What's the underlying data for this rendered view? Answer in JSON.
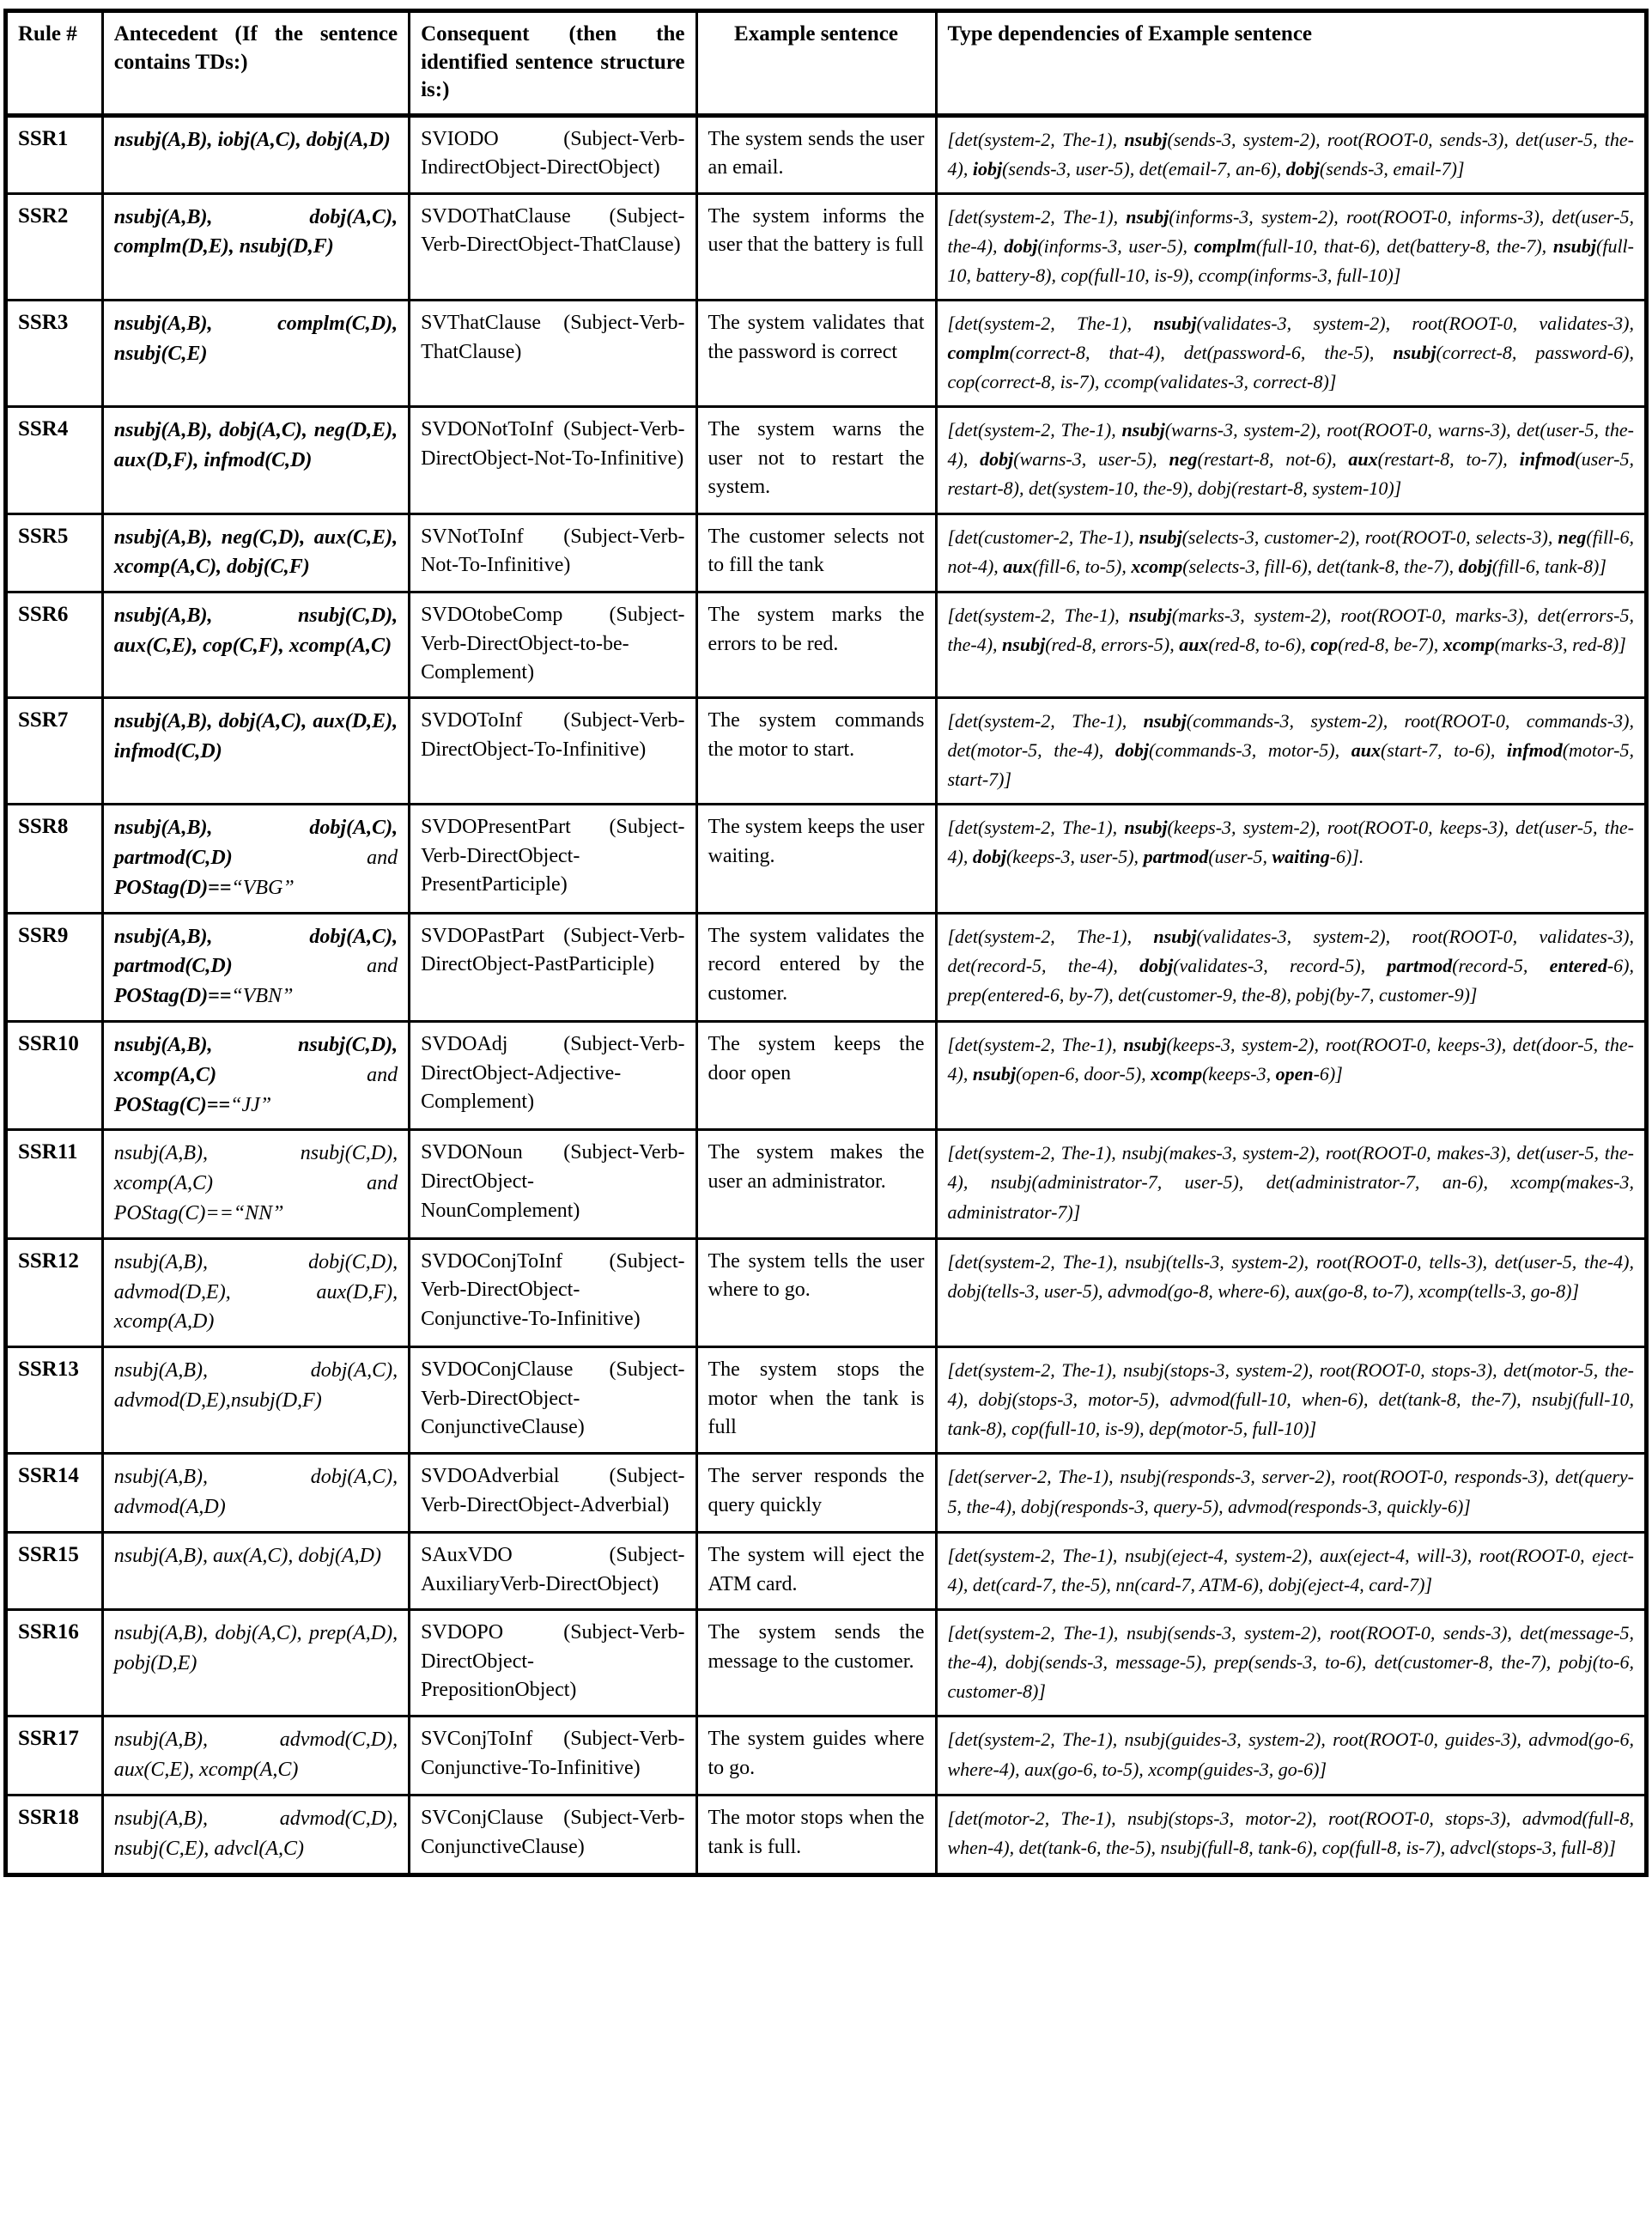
{
  "colors": {
    "text": "#000000",
    "background": "#ffffff",
    "border": "#000000"
  },
  "table": {
    "headers": [
      "Rule #",
      "Antecedent (If the sentence contains TDs:)",
      "Consequent (then the identified sentence structure is:)",
      "Example sentence",
      "Type dependencies of Example sentence"
    ],
    "rows": [
      {
        "rule": "SSR1",
        "antecedent": "**nsubj(A,B), iobj(A,C), dobj(A,D)**",
        "consequent": "SVIODO (Subject-Verb-IndirectObject-DirectObject)",
        "example": "The system sends the user an email.",
        "tds": "[det(system-2, The-1), **nsubj**(sends-3, system-2), root(ROOT-0, sends-3), det(user-5, the-4), **iobj**(sends-3, user-5), det(email-7, an-6), **dobj**(sends-3, email-7)]"
      },
      {
        "rule": "SSR2",
        "antecedent": "**nsubj(A,B), dobj(A,C), complm(D,E), nsubj(D,F)**",
        "consequent": "SVDOThatClause (Subject-Verb-DirectObject-ThatClause)",
        "example": "The system informs the user that the battery is full",
        "tds": "[det(system-2, The-1), **nsubj**(informs-3, system-2), root(ROOT-0, informs-3), det(user-5, the-4), **dobj**(informs-3, user-5), **complm**(full-10, that-6), det(battery-8, the-7), **nsubj**(full-10, battery-8), cop(full-10, is-9), ccomp(informs-3, full-10)]"
      },
      {
        "rule": "SSR3",
        "antecedent": "**nsubj(A,B), complm(C,D), nsubj(C,E)**",
        "consequent": "SVThatClause (Subject-Verb-ThatClause)",
        "example": "The system validates that the password is correct",
        "tds": "[det(system-2, The-1), **nsubj**(validates-3, system-2), root(ROOT-0, validates-3), **complm**(correct-8, that-4), det(password-6, the-5), **nsubj**(correct-8, password-6), cop(correct-8, is-7), ccomp(validates-3, correct-8)]"
      },
      {
        "rule": "SSR4",
        "antecedent": "**nsubj(A,B), dobj(A,C), neg(D,E), aux(D,F), infmod(C,D)**",
        "consequent": "SVDONotToInf (Subject-Verb-DirectObject-Not-To-Infinitive)",
        "example": "The system warns the user not to restart the system.",
        "tds": "[det(system-2, The-1), **nsubj**(warns-3, system-2), root(ROOT-0, warns-3), det(user-5, the-4), **dobj**(warns-3, user-5), **neg**(restart-8, not-6), **aux**(restart-8, to-7), **infmod**(user-5, restart-8), det(system-10, the-9), dobj(restart-8, system-10)]"
      },
      {
        "rule": "SSR5",
        "antecedent": "**nsubj(A,B), neg(C,D), aux(C,E), xcomp(A,C), dobj(C,F)**",
        "consequent": "SVNotToInf (Subject-Verb-Not-To-Infinitive)",
        "example": "The customer selects not to fill the tank",
        "tds": "[det(customer-2, The-1), **nsubj**(selects-3, customer-2), root(ROOT-0, selects-3), **neg**(fill-6, not-4), **aux**(fill-6, to-5), **xcomp**(selects-3, fill-6), det(tank-8, the-7), **dobj**(fill-6, tank-8)]"
      },
      {
        "rule": "SSR6",
        "antecedent": "**nsubj(A,B), nsubj(C,D), aux(C,E), cop(C,F), xcomp(A,C)**",
        "consequent": "SVDOtobeComp (Subject-Verb-DirectObject-to-be-Complement)",
        "example": "The system marks the errors to be red.",
        "tds": "[det(system-2, The-1), **nsubj**(marks-3, system-2), root(ROOT-0, marks-3), det(errors-5, the-4), **nsubj**(red-8, errors-5), **aux**(red-8, to-6), **cop**(red-8, be-7), **xcomp**(marks-3, red-8)]"
      },
      {
        "rule": "SSR7",
        "antecedent": "**nsubj(A,B), dobj(A,C), aux(D,E), infmod(C,D)**",
        "consequent": "SVDOToInf (Subject-Verb-DirectObject-To-Infinitive)",
        "example": "The system commands the motor to start.",
        "tds": "[det(system-2, The-1), **nsubj**(commands-3, system-2), root(ROOT-0, commands-3), det(motor-5, the-4), **dobj**(commands-3, motor-5), **aux**(start-7, to-6), **infmod**(motor-5, start-7)]"
      },
      {
        "rule": "SSR8",
        "antecedent": "**nsubj(A,B), dobj(A,C), partmod(C,D)** and **POStag(D)==**“VBG”",
        "consequent": "SVDOPresentPart (Subject-Verb-DirectObject-PresentParticiple)",
        "example": "The system keeps the user waiting.",
        "tds": "[det(system-2, The-1), **nsubj**(keeps-3, system-2), root(ROOT-0, keeps-3), det(user-5, the-4), **dobj**(keeps-3, user-5), **partmod**(user-5, **waiting**-6)]."
      },
      {
        "rule": "SSR9",
        "antecedent": "**nsubj(A,B), dobj(A,C), partmod(C,D)** and **POStag(D)==**“VBN”",
        "consequent": "SVDOPastPart (Subject-Verb-DirectObject-PastParticiple)",
        "example": "The system validates the record entered by the customer.",
        "tds": "[det(system-2, The-1), **nsubj**(validates-3, system-2), root(ROOT-0, validates-3), det(record-5, the-4), **dobj**(validates-3, record-5), **partmod**(record-5, **entered**-6), prep(entered-6, by-7), det(customer-9, the-8), pobj(by-7, customer-9)]"
      },
      {
        "rule": "SSR10",
        "antecedent": "**nsubj(A,B), nsubj(C,D), xcomp(A,C)** and **POStag(C)==**“JJ”",
        "consequent": "SVDOAdj (Subject-Verb-DirectObject-Adjective-Complement)",
        "example": "The system keeps the door open",
        "tds": "[det(system-2, The-1), **nsubj**(keeps-3, system-2), root(ROOT-0, keeps-3), det(door-5, the-4), **nsubj**(open-6, door-5), **xcomp**(keeps-3, **open**-6)]"
      },
      {
        "rule": "SSR11",
        "antecedent": "nsubj(A,B), nsubj(C,D), xcomp(A,C) and POStag(C)==“NN”",
        "consequent": "SVDONoun (Subject-Verb-DirectObject-NounComplement)",
        "example": "The system makes the user an administrator.",
        "tds": "[det(system-2, The-1), nsubj(makes-3, system-2), root(ROOT-0, makes-3), det(user-5, the-4), nsubj(administrator-7, user-5), det(administrator-7, an-6), xcomp(makes-3, administrator-7)]"
      },
      {
        "rule": "SSR12",
        "antecedent": "nsubj(A,B), dobj(C,D), advmod(D,E), aux(D,F), xcomp(A,D)",
        "consequent": "SVDOConjToInf (Subject-Verb-DirectObject-Conjunctive-To-Infinitive)",
        "example": "The system tells the user where to go.",
        "tds": "[det(system-2, The-1), nsubj(tells-3, system-2), root(ROOT-0, tells-3), det(user-5, the-4), dobj(tells-3, user-5), advmod(go-8, where-6), aux(go-8, to-7), xcomp(tells-3, go-8)]"
      },
      {
        "rule": "SSR13",
        "antecedent": "nsubj(A,B), dobj(A,C), advmod(D,E),nsubj(D,F)",
        "consequent": "SVDOConjClause (Subject-Verb-DirectObject-ConjunctiveClause)",
        "example": "The system stops the motor when the tank is full",
        "tds": "[det(system-2, The-1), nsubj(stops-3, system-2), root(ROOT-0, stops-3), det(motor-5, the-4), dobj(stops-3, motor-5), advmod(full-10, when-6), det(tank-8, the-7), nsubj(full-10, tank-8), cop(full-10, is-9), dep(motor-5, full-10)]"
      },
      {
        "rule": "SSR14",
        "antecedent": "nsubj(A,B), dobj(A,C), advmod(A,D)",
        "consequent": "SVDOAdverbial (Subject-Verb-DirectObject-Adverbial)",
        "example": "The server responds the query quickly",
        "tds": "[det(server-2, The-1), nsubj(responds-3, server-2), root(ROOT-0, responds-3), det(query-5, the-4), dobj(responds-3, query-5), advmod(responds-3, quickly-6)]"
      },
      {
        "rule": "SSR15",
        "antecedent": "nsubj(A,B), aux(A,C), dobj(A,D)",
        "consequent": "SAuxVDO (Subject-AuxiliaryVerb-DirectObject)",
        "example": "The system will eject the ATM card.",
        "tds": "[det(system-2, The-1), nsubj(eject-4, system-2), aux(eject-4, will-3), root(ROOT-0, eject-4), det(card-7, the-5), nn(card-7, ATM-6), dobj(eject-4, card-7)]"
      },
      {
        "rule": "SSR16",
        "antecedent": "nsubj(A,B), dobj(A,C), prep(A,D), pobj(D,E)",
        "consequent": "SVDOPO (Subject-Verb-DirectObject-PrepositionObject)",
        "example": "The system sends the message to the customer.",
        "tds": "[det(system-2, The-1), nsubj(sends-3, system-2), root(ROOT-0, sends-3), det(message-5, the-4), dobj(sends-3, message-5), prep(sends-3, to-6), det(customer-8, the-7), pobj(to-6, customer-8)]"
      },
      {
        "rule": "SSR17",
        "antecedent": "nsubj(A,B), advmod(C,D), aux(C,E), xcomp(A,C)",
        "consequent": "SVConjToInf (Subject-Verb-Conjunctive-To-Infinitive)",
        "example": "The system guides where to go.",
        "tds": "[det(system-2, The-1), nsubj(guides-3, system-2), root(ROOT-0, guides-3), advmod(go-6, where-4), aux(go-6, to-5), xcomp(guides-3, go-6)]"
      },
      {
        "rule": "SSR18",
        "antecedent": "nsubj(A,B), advmod(C,D), nsubj(C,E), advcl(A,C)",
        "consequent": "SVConjClause (Subject-Verb-ConjunctiveClause)",
        "example": "The motor stops when the tank is full.",
        "tds": "[det(motor-2, The-1), nsubj(stops-3, motor-2), root(ROOT-0, stops-3), advmod(full-8, when-4), det(tank-6, the-5), nsubj(full-8, tank-6), cop(full-8, is-7), advcl(stops-3, full-8)]"
      }
    ]
  }
}
